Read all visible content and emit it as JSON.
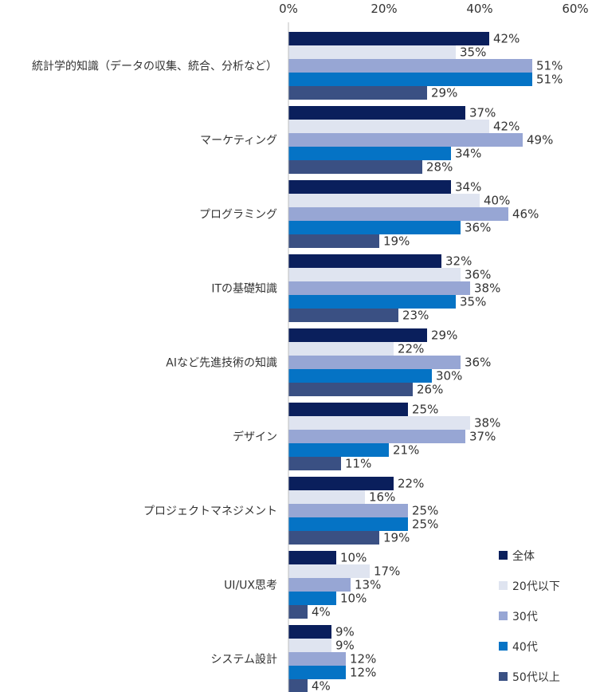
{
  "chart_data": {
    "type": "bar",
    "orientation": "horizontal",
    "xlim": [
      0,
      60
    ],
    "ticks": [
      "0%",
      "20%",
      "40%",
      "60%"
    ],
    "tick_values": [
      0,
      20,
      40,
      60
    ],
    "value_suffix": "%",
    "grid": false,
    "legend_position": "bottom-right",
    "categories": [
      "統計学的知識（データの収集、統合、分析など）",
      "マーケティング",
      "プログラミング",
      "ITの基礎知識",
      "AIなど先進技術の知識",
      "デザイン",
      "プロジェクトマネジメント",
      "UI/UX思考",
      "システム設計"
    ],
    "series": [
      {
        "name": "全体",
        "color": "#0a1f5c",
        "values": [
          42,
          37,
          34,
          32,
          29,
          25,
          22,
          10,
          9
        ]
      },
      {
        "name": "20代以下",
        "color": "#dfe4f0",
        "values": [
          35,
          42,
          40,
          36,
          22,
          38,
          16,
          17,
          9
        ]
      },
      {
        "name": "30代",
        "color": "#97a6d4",
        "values": [
          51,
          49,
          46,
          38,
          36,
          37,
          25,
          13,
          12
        ]
      },
      {
        "name": "40代",
        "color": "#0573c5",
        "values": [
          51,
          34,
          36,
          35,
          30,
          21,
          25,
          10,
          12
        ]
      },
      {
        "name": "50代以上",
        "color": "#3a5083",
        "values": [
          29,
          28,
          19,
          23,
          26,
          11,
          19,
          4,
          4
        ]
      }
    ]
  }
}
